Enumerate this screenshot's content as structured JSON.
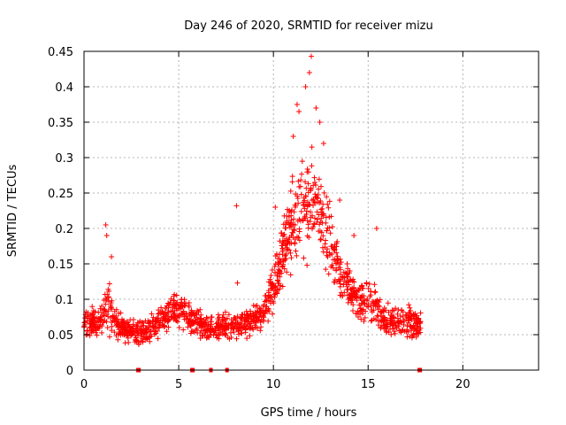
{
  "chart_data": {
    "type": "scatter",
    "title": "Day 246 of 2020, SRMTID for receiver mizu",
    "xlabel": "GPS time / hours",
    "ylabel": "SRMTID / TECUs",
    "xlim": [
      0,
      24
    ],
    "ylim": [
      0,
      0.45
    ],
    "grid": true,
    "legend": "none",
    "x_ticks": [
      0,
      5,
      10,
      15,
      20
    ],
    "y_ticks": [
      0,
      0.05,
      0.1,
      0.15,
      0.2,
      0.25,
      0.3,
      0.35,
      0.4,
      0.45
    ],
    "x_tick_labels": [
      "0",
      "5",
      "10",
      "15",
      "20"
    ],
    "y_tick_labels": [
      "0",
      "0.05",
      "0.1",
      "0.15",
      "0.2",
      "0.25",
      "0.3",
      "0.35",
      "0.4",
      "0.45"
    ],
    "marker": "+",
    "color": "#ff0000",
    "series": [
      {
        "name": "SRMTID",
        "description": "Dense scatter of '+' markers; values approximated by hourly envelope",
        "envelope": [
          {
            "t": 0.0,
            "center": 0.07,
            "spread": 0.03
          },
          {
            "t": 0.5,
            "center": 0.065,
            "spread": 0.03
          },
          {
            "t": 1.0,
            "center": 0.07,
            "spread": 0.04
          },
          {
            "t": 1.3,
            "center": 0.09,
            "spread": 0.06
          },
          {
            "t": 1.6,
            "center": 0.065,
            "spread": 0.03
          },
          {
            "t": 2.0,
            "center": 0.06,
            "spread": 0.025
          },
          {
            "t": 2.5,
            "center": 0.055,
            "spread": 0.025
          },
          {
            "t": 3.0,
            "center": 0.05,
            "spread": 0.025
          },
          {
            "t": 3.5,
            "center": 0.06,
            "spread": 0.03
          },
          {
            "t": 4.0,
            "center": 0.07,
            "spread": 0.03
          },
          {
            "t": 4.5,
            "center": 0.08,
            "spread": 0.03
          },
          {
            "t": 5.0,
            "center": 0.085,
            "spread": 0.035
          },
          {
            "t": 5.5,
            "center": 0.075,
            "spread": 0.03
          },
          {
            "t": 6.0,
            "center": 0.065,
            "spread": 0.025
          },
          {
            "t": 6.5,
            "center": 0.06,
            "spread": 0.025
          },
          {
            "t": 7.0,
            "center": 0.06,
            "spread": 0.025
          },
          {
            "t": 7.5,
            "center": 0.06,
            "spread": 0.025
          },
          {
            "t": 8.0,
            "center": 0.065,
            "spread": 0.025
          },
          {
            "t": 8.5,
            "center": 0.065,
            "spread": 0.03
          },
          {
            "t": 9.0,
            "center": 0.07,
            "spread": 0.03
          },
          {
            "t": 9.5,
            "center": 0.08,
            "spread": 0.03
          },
          {
            "t": 10.0,
            "center": 0.12,
            "spread": 0.05
          },
          {
            "t": 10.5,
            "center": 0.17,
            "spread": 0.07
          },
          {
            "t": 11.0,
            "center": 0.21,
            "spread": 0.08
          },
          {
            "t": 11.5,
            "center": 0.23,
            "spread": 0.09
          },
          {
            "t": 12.0,
            "center": 0.23,
            "spread": 0.1
          },
          {
            "t": 12.5,
            "center": 0.22,
            "spread": 0.09
          },
          {
            "t": 13.0,
            "center": 0.18,
            "spread": 0.07
          },
          {
            "t": 13.5,
            "center": 0.14,
            "spread": 0.05
          },
          {
            "t": 14.0,
            "center": 0.12,
            "spread": 0.05
          },
          {
            "t": 14.5,
            "center": 0.1,
            "spread": 0.04
          },
          {
            "t": 15.0,
            "center": 0.1,
            "spread": 0.045
          },
          {
            "t": 15.5,
            "center": 0.085,
            "spread": 0.035
          },
          {
            "t": 16.0,
            "center": 0.07,
            "spread": 0.03
          },
          {
            "t": 16.5,
            "center": 0.07,
            "spread": 0.03
          },
          {
            "t": 17.0,
            "center": 0.07,
            "spread": 0.03
          },
          {
            "t": 17.5,
            "center": 0.065,
            "spread": 0.03
          },
          {
            "t": 17.8,
            "center": 0.065,
            "spread": 0.025
          }
        ],
        "outliers": [
          {
            "x": 1.15,
            "y": 0.205
          },
          {
            "x": 1.2,
            "y": 0.19
          },
          {
            "x": 1.45,
            "y": 0.16
          },
          {
            "x": 8.05,
            "y": 0.232
          },
          {
            "x": 8.1,
            "y": 0.123
          },
          {
            "x": 12.0,
            "y": 0.443
          },
          {
            "x": 11.7,
            "y": 0.4
          },
          {
            "x": 11.9,
            "y": 0.42
          },
          {
            "x": 11.25,
            "y": 0.375
          },
          {
            "x": 11.35,
            "y": 0.365
          },
          {
            "x": 12.25,
            "y": 0.37
          },
          {
            "x": 12.45,
            "y": 0.35
          },
          {
            "x": 11.05,
            "y": 0.33
          },
          {
            "x": 12.65,
            "y": 0.32
          },
          {
            "x": 15.45,
            "y": 0.2
          },
          {
            "x": 13.5,
            "y": 0.24
          },
          {
            "x": 14.25,
            "y": 0.19
          },
          {
            "x": 10.1,
            "y": 0.23
          },
          {
            "x": 9.6,
            "y": 0.105
          }
        ],
        "zeros": [
          2.85,
          2.9,
          5.7,
          5.75,
          6.7,
          7.55,
          17.7,
          17.75
        ]
      }
    ]
  }
}
